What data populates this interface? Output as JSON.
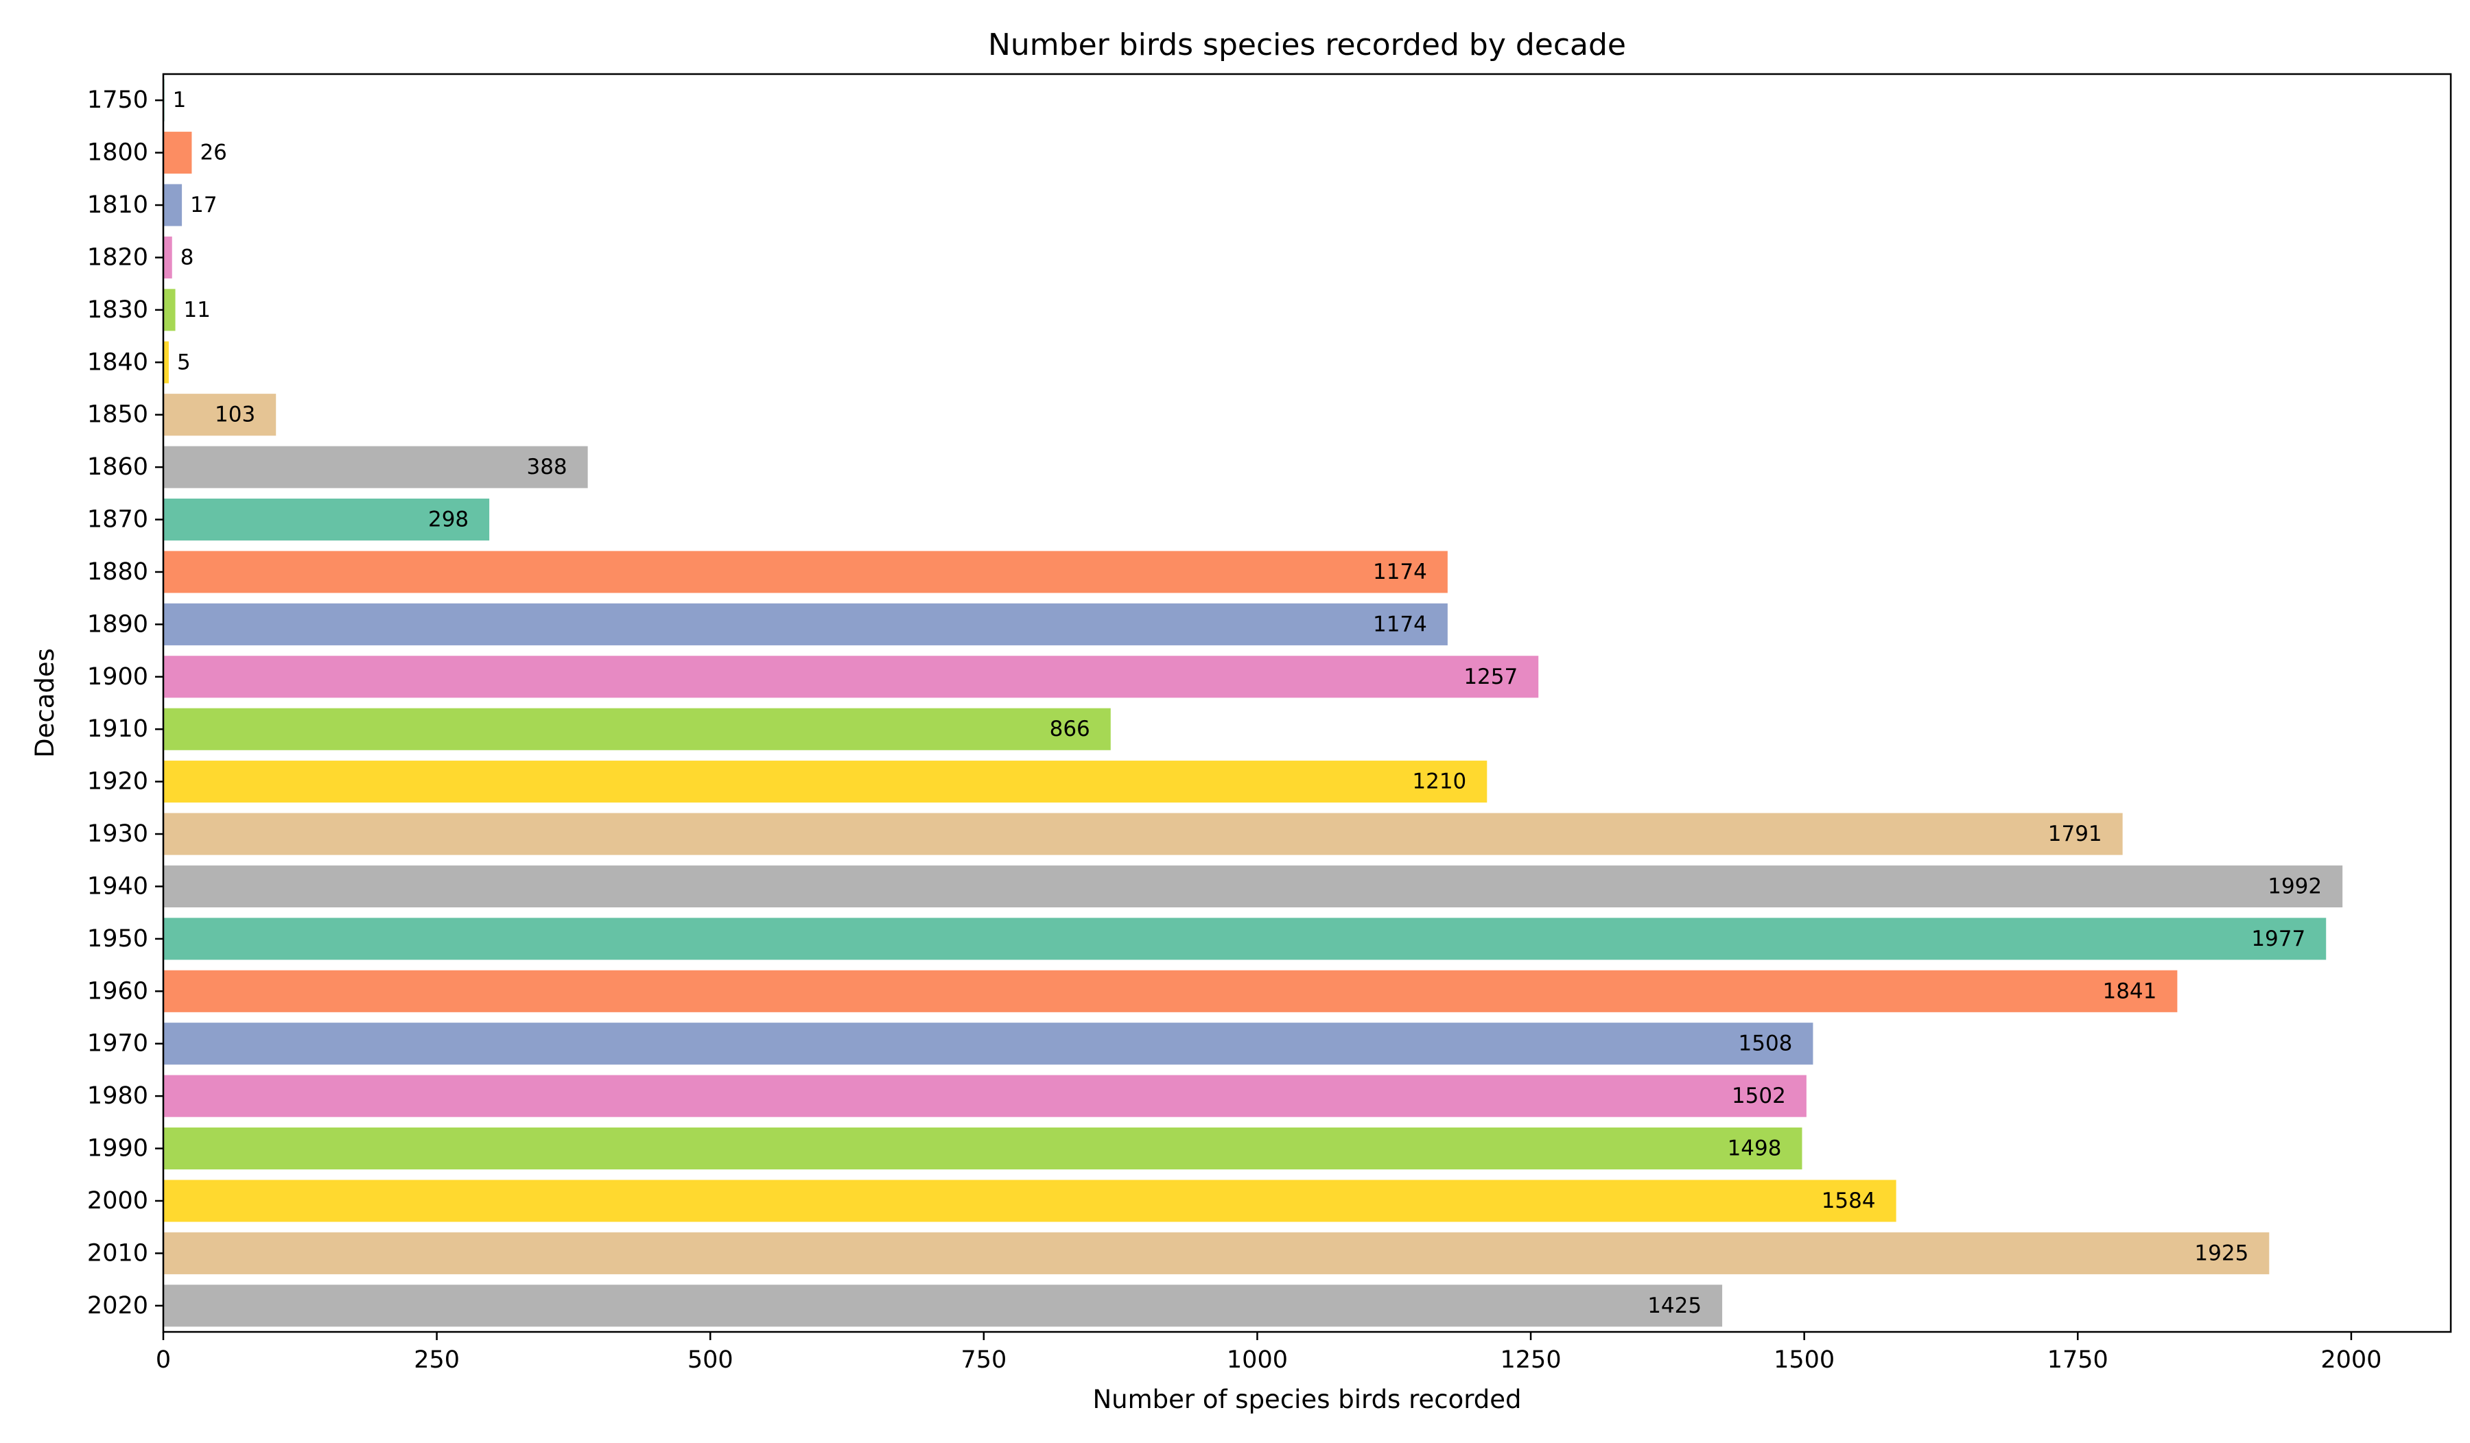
{
  "chart_data": {
    "type": "bar",
    "orientation": "horizontal",
    "title": "Number birds species recorded by decade",
    "xlabel": "Number of species birds recorded",
    "ylabel": "Decades",
    "categories": [
      "1750",
      "1800",
      "1810",
      "1820",
      "1830",
      "1840",
      "1850",
      "1860",
      "1870",
      "1880",
      "1890",
      "1900",
      "1910",
      "1920",
      "1930",
      "1940",
      "1950",
      "1960",
      "1970",
      "1980",
      "1990",
      "2000",
      "2010",
      "2020"
    ],
    "values": [
      1,
      26,
      17,
      8,
      11,
      5,
      103,
      388,
      298,
      1174,
      1174,
      1257,
      866,
      1210,
      1791,
      1992,
      1977,
      1841,
      1508,
      1502,
      1498,
      1584,
      1925,
      1425
    ],
    "data_labels": [
      "1",
      "26",
      "17",
      "8",
      "11",
      "5",
      "103",
      "388",
      "298",
      "1174",
      "1174",
      "1257",
      "866",
      "1210",
      "1791",
      "1992",
      "1977",
      "1841",
      "1508",
      "1502",
      "1498",
      "1584",
      "1925",
      "1425"
    ],
    "xlim": [
      0,
      2091
    ],
    "xticks": [
      0,
      250,
      500,
      750,
      1000,
      1250,
      1500,
      1750,
      2000
    ],
    "xtick_labels": [
      "0",
      "250",
      "500",
      "750",
      "1000",
      "1250",
      "1500",
      "1750",
      "2000"
    ],
    "grid": false,
    "legend": "none",
    "colors": [
      "#66c2a5",
      "#fc8d62",
      "#8da0cb",
      "#e78ac3",
      "#a6d854",
      "#ffd92f",
      "#e5c494",
      "#b3b3b3"
    ]
  }
}
